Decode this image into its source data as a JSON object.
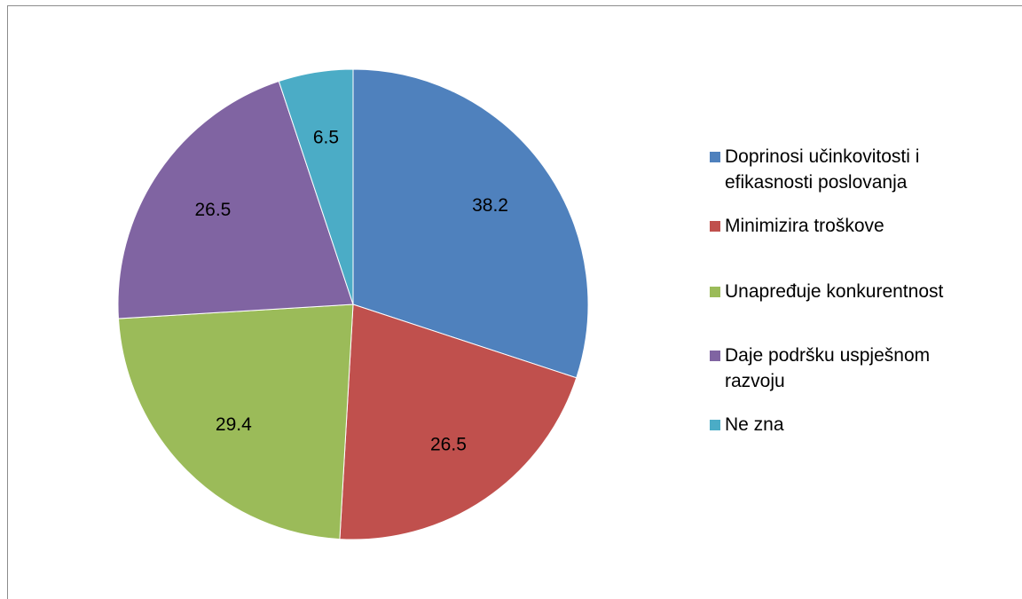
{
  "chart_data": {
    "type": "pie",
    "title": "",
    "start_angle_deg": 0,
    "direction": "clockwise",
    "legend_position": "right",
    "slices": [
      {
        "label": "Doprinosi učinkovitosti i efikasnosti poslovanja",
        "value": 38.2,
        "data_label": "38.2",
        "color": "#4f81bd"
      },
      {
        "label": "Minimizira troškove",
        "value": 26.5,
        "data_label": "26.5",
        "color": "#c0504d"
      },
      {
        "label": "Unapređuje konkurentnost",
        "value": 29.4,
        "data_label": "29.4",
        "color": "#9bbb59"
      },
      {
        "label": "Daje podršku uspješnom razvoju",
        "value": 26.5,
        "data_label": "26.5",
        "color": "#8064a2"
      },
      {
        "label": "Ne zna",
        "value": 6.5,
        "data_label": "6.5",
        "color": "#4bacc6"
      }
    ]
  }
}
